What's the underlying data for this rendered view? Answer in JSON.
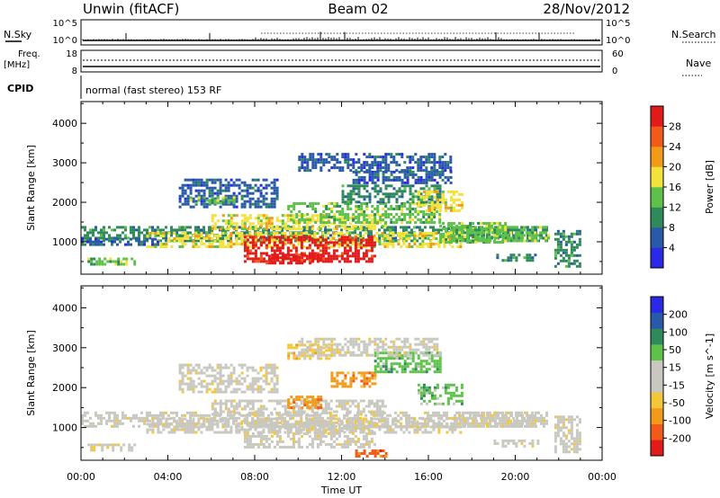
{
  "header": {
    "title_left": "Unwin (fitACF)",
    "title_center": "Beam 02",
    "title_right": "28/Nov/2012"
  },
  "summary": {
    "nsky_label": "N.Sky",
    "nsky_ticks": [
      "10^5",
      "10^0"
    ],
    "nsearch_label": "N.Search",
    "nsearch_ticks": [
      "10^5",
      "10^0"
    ],
    "freq_label_1": "Freq.",
    "freq_label_2": "[MHz]",
    "freq_ticks": [
      "18",
      "8"
    ],
    "nave_label": "Nave",
    "nave_ticks": [
      "60",
      "0"
    ],
    "cpid_label": "CPID",
    "cpid_value": "normal (fast stereo) 153 RF"
  },
  "colors": {
    "power_scale": [
      "#2a2ae6",
      "#285aa8",
      "#2e8a5a",
      "#5ec24a",
      "#f2e23a",
      "#f29a1a",
      "#f25a1a",
      "#e21a1a"
    ],
    "velocity_scale": [
      "#e21a1a",
      "#f25a1a",
      "#f29a1a",
      "#f2c83a",
      "#c8c8c0",
      "#c8c8c0",
      "#5ec24a",
      "#2e8a5a",
      "#285aa8",
      "#2a2ae6"
    ]
  },
  "chart_data": [
    {
      "type": "heatmap",
      "name": "power",
      "ylabel": "Slant Range [km]",
      "ylim": [
        180,
        4550
      ],
      "yticks": [
        1000,
        2000,
        3000,
        4000
      ],
      "xlim": [
        0,
        24
      ],
      "colorbar_label": "Power [dB]",
      "colorbar_ticks": [
        "4",
        "8",
        "12",
        "16",
        "20",
        "24",
        "28"
      ],
      "colorbar_range": [
        0,
        32
      ],
      "blobs": [
        {
          "t0": 0.0,
          "t1": 21.5,
          "r0": 1050,
          "r1": 1400,
          "level": 2
        },
        {
          "t0": 3.0,
          "t1": 17.5,
          "r0": 850,
          "r1": 1250,
          "level": 4
        },
        {
          "t0": 7.5,
          "t1": 13.5,
          "r0": 500,
          "r1": 1150,
          "level": 7
        },
        {
          "t0": 8.5,
          "t1": 11.0,
          "r0": 450,
          "r1": 700,
          "level": 7
        },
        {
          "t0": 6.0,
          "t1": 14.0,
          "r0": 1300,
          "r1": 1700,
          "level": 4
        },
        {
          "t0": 9.5,
          "t1": 16.5,
          "r0": 1500,
          "r1": 2000,
          "level": 3
        },
        {
          "t0": 12.0,
          "t1": 16.5,
          "r0": 2000,
          "r1": 2450,
          "level": 2
        },
        {
          "t0": 12.5,
          "t1": 17.0,
          "r0": 2500,
          "r1": 2800,
          "level": 1
        },
        {
          "t0": 4.5,
          "t1": 9.0,
          "r0": 1900,
          "r1": 2600,
          "level": 1
        },
        {
          "t0": 5.0,
          "t1": 7.0,
          "r0": 2000,
          "r1": 2150,
          "level": 3
        },
        {
          "t0": 10.0,
          "t1": 17.0,
          "r0": 2800,
          "r1": 3250,
          "level": 1
        },
        {
          "t0": 15.5,
          "t1": 17.5,
          "r0": 1800,
          "r1": 2300,
          "level": 4
        },
        {
          "t0": 16.5,
          "t1": 19.5,
          "r0": 1000,
          "r1": 1500,
          "level": 3
        },
        {
          "t0": 17.0,
          "t1": 21.5,
          "r0": 1000,
          "r1": 1400,
          "level": 3
        },
        {
          "t0": 0.3,
          "t1": 2.5,
          "r0": 400,
          "r1": 600,
          "level": 3
        },
        {
          "t0": 19.0,
          "t1": 21.0,
          "r0": 500,
          "r1": 700,
          "level": 2
        },
        {
          "t0": 21.8,
          "t1": 23.0,
          "r0": 400,
          "r1": 1300,
          "level": 2
        },
        {
          "t0": 0.0,
          "t1": 3.5,
          "r0": 900,
          "r1": 1100,
          "level": 1
        }
      ]
    },
    {
      "type": "heatmap",
      "name": "velocity",
      "ylabel": "Slant Range [km]",
      "ylim": [
        180,
        4550
      ],
      "yticks": [
        1000,
        2000,
        3000,
        4000
      ],
      "xlim": [
        0,
        24
      ],
      "xticks": [
        "00:00",
        "04:00",
        "08:00",
        "12:00",
        "16:00",
        "20:00",
        "00:00"
      ],
      "xlabel": "Time UT",
      "colorbar_label": "Velocity [m s^-1]",
      "colorbar_ticks": [
        "-200",
        "-100",
        "-50",
        "-15",
        "15",
        "50",
        "100",
        "200"
      ],
      "colorbar_range": [
        -250,
        250
      ],
      "blobs": [
        {
          "t0": 0.0,
          "t1": 21.5,
          "r0": 1050,
          "r1": 1400,
          "level": 4
        },
        {
          "t0": 3.0,
          "t1": 17.5,
          "r0": 850,
          "r1": 1250,
          "level": 4
        },
        {
          "t0": 7.5,
          "t1": 13.5,
          "r0": 500,
          "r1": 1150,
          "level": 4
        },
        {
          "t0": 0.3,
          "t1": 2.5,
          "r0": 400,
          "r1": 600,
          "level": 4
        },
        {
          "t0": 21.8,
          "t1": 23.0,
          "r0": 400,
          "r1": 1300,
          "level": 4
        },
        {
          "t0": 6.0,
          "t1": 14.0,
          "r0": 1300,
          "r1": 1700,
          "level": 4
        },
        {
          "t0": 4.5,
          "t1": 9.0,
          "r0": 1900,
          "r1": 2600,
          "level": 4
        },
        {
          "t0": 9.5,
          "t1": 11.0,
          "r0": 1500,
          "r1": 1800,
          "level": 2
        },
        {
          "t0": 11.5,
          "t1": 13.5,
          "r0": 2000,
          "r1": 2400,
          "level": 2
        },
        {
          "t0": 13.5,
          "t1": 16.5,
          "r0": 2400,
          "r1": 2900,
          "level": 6
        },
        {
          "t0": 15.5,
          "t1": 17.5,
          "r0": 1600,
          "r1": 2100,
          "level": 6
        },
        {
          "t0": 12.5,
          "t1": 14.0,
          "r0": 300,
          "r1": 450,
          "level": 1
        },
        {
          "t0": 9.5,
          "t1": 11.5,
          "r0": 2700,
          "r1": 3100,
          "level": 3
        },
        {
          "t0": 17.0,
          "t1": 21.0,
          "r0": 1000,
          "r1": 1400,
          "level": 4
        },
        {
          "t0": 19.0,
          "t1": 21.0,
          "r0": 500,
          "r1": 700,
          "level": 4
        },
        {
          "t0": 10.0,
          "t1": 16.5,
          "r0": 2800,
          "r1": 3250,
          "level": 4
        }
      ]
    }
  ]
}
